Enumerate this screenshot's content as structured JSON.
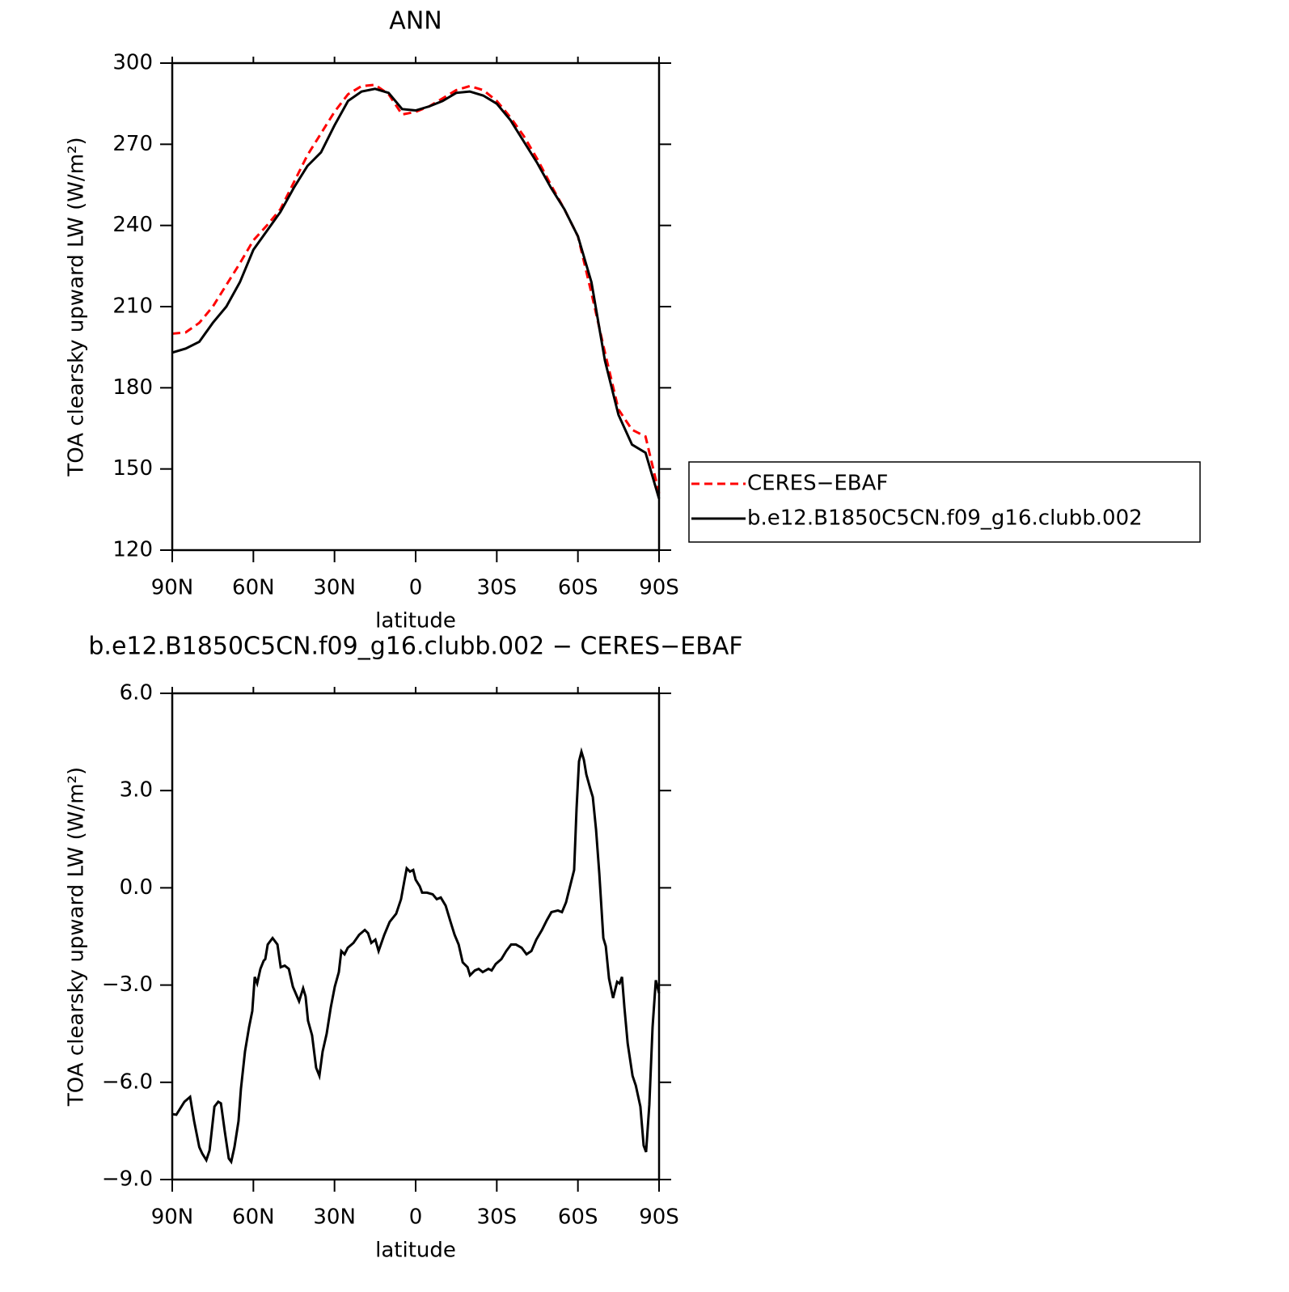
{
  "chart_data": [
    {
      "type": "line",
      "title": "ANN",
      "xlabel": "latitude",
      "ylabel": "TOA clearsky upward LW (W/m²)",
      "x": [
        90,
        85,
        80,
        75,
        70,
        65,
        60,
        55,
        50,
        45,
        40,
        35,
        30,
        25,
        20,
        15,
        10,
        5,
        0,
        -5,
        -10,
        -15,
        -20,
        -25,
        -30,
        -35,
        -40,
        -45,
        -50,
        -55,
        -60,
        -65,
        -70,
        -75,
        -80,
        -85,
        -90
      ],
      "xlim": [
        90,
        -90
      ],
      "xticks": [
        {
          "value": 90,
          "label": "90N"
        },
        {
          "value": 60,
          "label": "60N"
        },
        {
          "value": 30,
          "label": "30N"
        },
        0,
        {
          "value": -30,
          "label": "30S"
        },
        {
          "value": -60,
          "label": "60S"
        },
        {
          "value": -90,
          "label": "90S"
        }
      ],
      "ylim": [
        120,
        300
      ],
      "yticks": [
        120,
        150,
        180,
        210,
        240,
        270,
        300
      ],
      "legend": "right",
      "series": [
        {
          "name": "CERES−EBAF",
          "color": "#ff0000",
          "linestyle": "dashed",
          "values": [
            200,
            200.5,
            204,
            210,
            218,
            226,
            234.5,
            240,
            246,
            256,
            266,
            274,
            282,
            288.5,
            291.5,
            292,
            288.5,
            281,
            282,
            284,
            287,
            290,
            291.5,
            290,
            286,
            280,
            273,
            264.5,
            255,
            246,
            236,
            215,
            193,
            172,
            164.5,
            162,
            141
          ]
        },
        {
          "name": "b.e12.B1850C5CN.f09_g16.clubb.002",
          "color": "#000000",
          "linestyle": "solid",
          "values": [
            193,
            194.5,
            197,
            204,
            210,
            219,
            231,
            238,
            245,
            254,
            262,
            267,
            277,
            286,
            289.5,
            290.5,
            289,
            283,
            282.5,
            284,
            286,
            289,
            289.5,
            288,
            285,
            279,
            271,
            263,
            254,
            246,
            236,
            219,
            190,
            170,
            159,
            156,
            139
          ]
        }
      ]
    },
    {
      "type": "line",
      "title": "b.e12.B1850C5CN.f09_g16.clubb.002 − CERES−EBAF",
      "xlabel": "latitude",
      "ylabel": "TOA clearsky upward LW (W/m²)",
      "x": [
        90,
        88.5,
        85.5,
        83.4,
        81.9,
        80,
        78.9,
        77.4,
        76.2,
        74.4,
        73,
        72,
        70.6,
        69.1,
        68.2,
        67,
        65.5,
        64.6,
        63.1,
        61.6,
        60.4,
        59.5,
        58.6,
        57.4,
        56.2,
        55.6,
        54.7,
        52.9,
        51.1,
        49.9,
        48.4,
        46.9,
        45.4,
        43.1,
        41.6,
        40.7,
        39.8,
        38.3,
        36.8,
        35.6,
        34.4,
        32.9,
        31.4,
        29.9,
        28.4,
        27.5,
        26.3,
        25.1,
        23,
        20.9,
        18.8,
        17.6,
        16.4,
        14.9,
        13.7,
        11.6,
        9.6,
        7.2,
        5.4,
        4.2,
        3.3,
        2.1,
        0.9,
        0,
        -1.5,
        -2.4,
        -4.2,
        -6.3,
        -7.8,
        -9.3,
        -11.1,
        -12.9,
        -14.4,
        -15.9,
        -17.4,
        -19.2,
        -20.1,
        -21.9,
        -23.3,
        -24.8,
        -26.9,
        -28.1,
        -29.6,
        -31.7,
        -33.5,
        -35.3,
        -37.1,
        -39.2,
        -41,
        -42.8,
        -44.6,
        -46.7,
        -48.5,
        -50.2,
        -52.6,
        -54.1,
        -55.6,
        -57.1,
        -58.6,
        -59.5,
        -60.4,
        -61.3,
        -62.2,
        -63.1,
        -64.6,
        -65.5,
        -66.7,
        -67.9,
        -69.4,
        -70.3,
        -71.5,
        -73,
        -74.5,
        -75.4,
        -76.3,
        -77.2,
        -78.4,
        -80.2,
        -81.4,
        -83.1,
        -84.3,
        -85.2,
        -86.4,
        -87.6,
        -88.8,
        -90
      ],
      "xlim": [
        90,
        -90
      ],
      "xticks": [
        {
          "value": 90,
          "label": "90N"
        },
        {
          "value": 60,
          "label": "60N"
        },
        {
          "value": 30,
          "label": "30N"
        },
        0,
        {
          "value": -30,
          "label": "30S"
        },
        {
          "value": -60,
          "label": "60S"
        },
        {
          "value": -90,
          "label": "90S"
        }
      ],
      "ylim": [
        -9,
        6
      ],
      "yticks": [
        {
          "value": -9,
          "label": "−9.0"
        },
        {
          "value": -6,
          "label": "−6.0"
        },
        {
          "value": -3,
          "label": "−3.0"
        },
        {
          "value": 0,
          "label": "0.0"
        },
        {
          "value": 3,
          "label": "3.0"
        },
        {
          "value": 6,
          "label": "6.0"
        }
      ],
      "series": [
        {
          "color": "#000000",
          "linestyle": "solid",
          "values": [
            -6.98,
            -7.0,
            -6.6,
            -6.45,
            -7.2,
            -8.0,
            -8.2,
            -8.4,
            -8.1,
            -6.75,
            -6.6,
            -6.65,
            -7.5,
            -8.35,
            -8.45,
            -8.0,
            -7.2,
            -6.2,
            -5.05,
            -4.3,
            -3.8,
            -2.75,
            -2.95,
            -2.5,
            -2.25,
            -2.2,
            -1.75,
            -1.55,
            -1.75,
            -2.45,
            -2.4,
            -2.5,
            -3.05,
            -3.5,
            -3.1,
            -3.35,
            -4.1,
            -4.55,
            -5.55,
            -5.8,
            -5.05,
            -4.5,
            -3.7,
            -3.05,
            -2.6,
            -1.95,
            -2.05,
            -1.85,
            -1.7,
            -1.45,
            -1.3,
            -1.4,
            -1.7,
            -1.6,
            -1.95,
            -1.45,
            -1.05,
            -0.8,
            -0.35,
            0.2,
            0.6,
            0.5,
            0.55,
            0.25,
            0.05,
            -0.15,
            -0.15,
            -0.2,
            -0.35,
            -0.3,
            -0.55,
            -1.05,
            -1.45,
            -1.75,
            -2.3,
            -2.45,
            -2.7,
            -2.55,
            -2.5,
            -2.6,
            -2.5,
            -2.55,
            -2.35,
            -2.2,
            -1.95,
            -1.75,
            -1.75,
            -1.85,
            -2.05,
            -1.95,
            -1.6,
            -1.3,
            -1.0,
            -0.75,
            -0.7,
            -0.75,
            -0.45,
            0.05,
            0.55,
            2.45,
            3.9,
            4.2,
            3.95,
            3.5,
            3.05,
            2.8,
            1.8,
            0.45,
            -1.55,
            -1.8,
            -2.8,
            -3.4,
            -2.9,
            -2.95,
            -2.75,
            -3.7,
            -4.8,
            -5.8,
            -6.1,
            -6.75,
            -7.95,
            -8.15,
            -6.7,
            -4.3,
            -2.85,
            -3.25
          ]
        }
      ]
    }
  ]
}
